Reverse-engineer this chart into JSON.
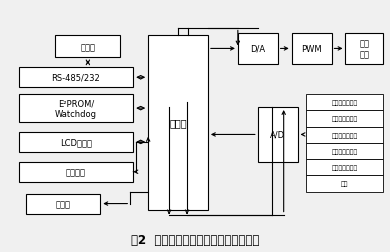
{
  "title": "图2  基于单片机的开关电源原理结构图",
  "title_fontsize": 8.5,
  "bg_color": "#f0f0f0",
  "sensor_labels": [
    "输出电压模拟量",
    "输出电压状态量",
    "输出电流模拟量",
    "输出电流状态量",
    "输入电流状态量",
    "温度"
  ],
  "font_size": 6.0,
  "line_color": "#000000"
}
